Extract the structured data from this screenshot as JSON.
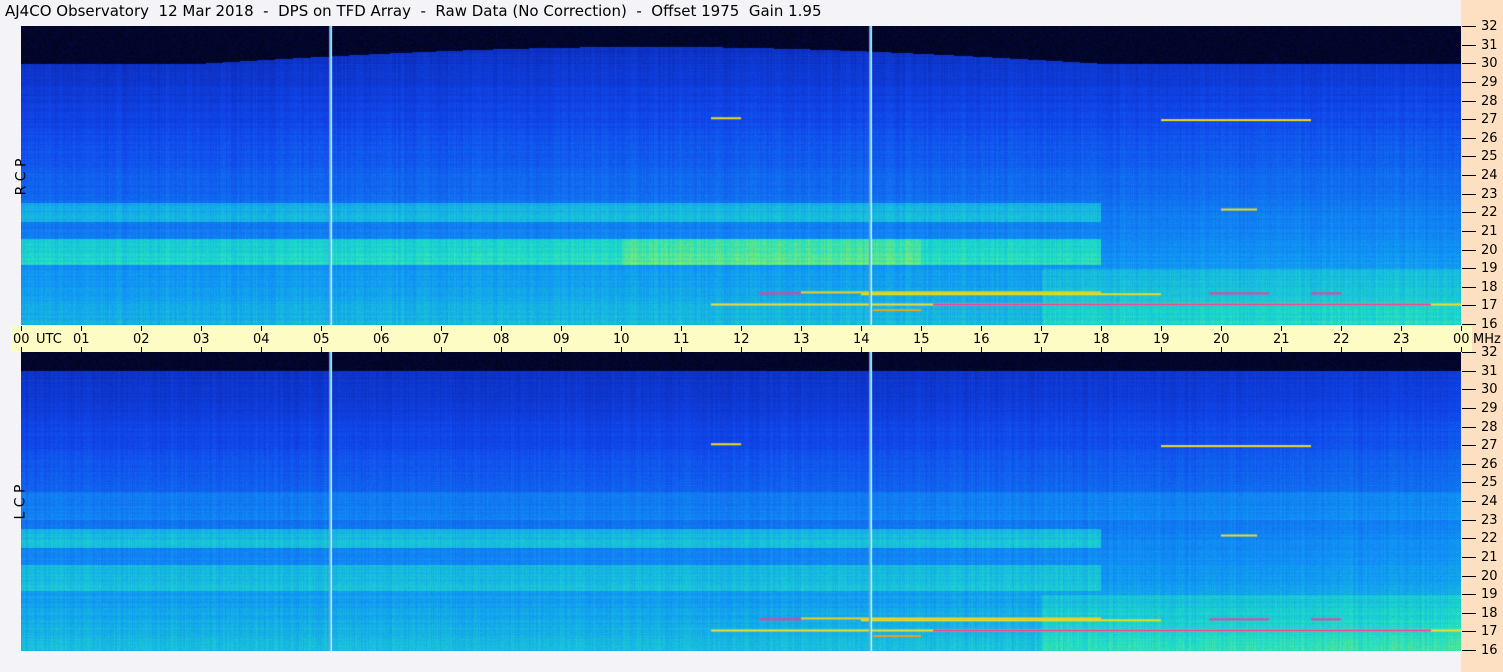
{
  "title": "AJ4CO Observatory  12 Mar 2018  -  DPS on TFD Array  -  Raw Data (No Correction)  -  Offset 1975  Gain 1.95",
  "chart_data": [
    {
      "type": "heatmap",
      "panel": "top",
      "polarization_label": "R C P",
      "xlabel": "UTC",
      "ylabel": "MHz",
      "x_tick_labels": [
        "00",
        "01",
        "02",
        "03",
        "04",
        "05",
        "06",
        "07",
        "08",
        "09",
        "10",
        "11",
        "12",
        "13",
        "14",
        "15",
        "16",
        "17",
        "18",
        "19",
        "20",
        "21",
        "22",
        "23",
        "00"
      ],
      "y_tick_labels": [
        "16",
        "17",
        "18",
        "19",
        "20",
        "21",
        "22",
        "23",
        "24",
        "25",
        "26",
        "27",
        "28",
        "29",
        "30",
        "31",
        "32"
      ],
      "xlim_utc_hours": [
        0,
        24
      ],
      "ylim_mhz": [
        16,
        32
      ],
      "colormap": [
        "#000000",
        "#0a1a9a",
        "#1050e8",
        "#10a0f0",
        "#20e0c0",
        "#c0f040",
        "#f0e020",
        "#f04080"
      ],
      "vertical_markers_utc_hours": [
        5.15,
        14.15
      ]
    },
    {
      "type": "heatmap",
      "panel": "bottom",
      "polarization_label": "L C P",
      "xlabel": "UTC",
      "ylabel": "MHz",
      "y_tick_labels": [
        "16",
        "17",
        "18",
        "19",
        "20",
        "21",
        "22",
        "23",
        "24",
        "25",
        "26",
        "27",
        "28",
        "29",
        "30",
        "31",
        "32"
      ],
      "xlim_utc_hours": [
        0,
        24
      ],
      "ylim_mhz": [
        16,
        32
      ],
      "vertical_markers_utc_hours": [
        5.15,
        14.15
      ]
    }
  ]
}
